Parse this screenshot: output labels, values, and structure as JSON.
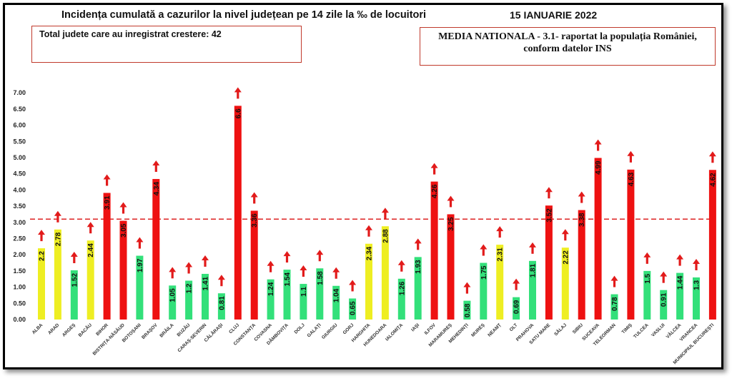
{
  "header": {
    "title": "Incidența cumulată a cazurilor la nivel județean pe 14 zile la ‰ de locuitori",
    "date": "15 IANUARIE 2022"
  },
  "info_left": {
    "text": "Total judete care au inregistrat crestere: 42"
  },
  "info_right": {
    "line1": "MEDIA NATIONALA - 3.1-  raportat la populația României,",
    "line2": "conform datelor INS"
  },
  "colors": {
    "red": "#ee1111",
    "yellow": "#eeee22",
    "green": "#33e07a",
    "arrow": "#e21b1b",
    "reference": "#dd2222"
  },
  "chart_data": {
    "type": "bar",
    "categories": [
      "ALBA",
      "ARAD",
      "ARGEȘ",
      "BACĂU",
      "BIHOR",
      "BISTRIȚA-NĂSĂUD",
      "BOTOȘANI",
      "BRAȘOV",
      "BRĂILA",
      "BUZĂU",
      "CARAȘ-SEVERIN",
      "CĂLĂRAȘI",
      "CLUJ",
      "CONSTANȚA",
      "COVASNA",
      "DÂMBOVIȚA",
      "DOLJ",
      "GALAȚI",
      "GIURGIU",
      "GORJ",
      "HARGHITA",
      "HUNEDOARA",
      "IALOMIȚA",
      "IAȘI",
      "ILFOV",
      "MARAMUREȘ",
      "MEHEDINȚI",
      "MUREȘ",
      "NEAMȚ",
      "OLT",
      "PRAHOVA",
      "SATU MARE",
      "SĂLAJ",
      "SIBIU",
      "SUCEAVA",
      "TELEORMAN",
      "TIMIȘ",
      "TULCEA",
      "VASLUI",
      "VÂLCEA",
      "VRANCEA",
      "MUNICIPIUL BUCUREȘTI"
    ],
    "values": [
      2.2,
      2.78,
      1.52,
      2.44,
      3.91,
      3.05,
      1.97,
      4.34,
      1.05,
      1.2,
      1.41,
      0.81,
      6.6,
      3.36,
      1.24,
      1.54,
      1.1,
      1.58,
      1.04,
      0.65,
      2.34,
      2.88,
      1.26,
      1.93,
      4.26,
      3.25,
      0.58,
      1.75,
      2.31,
      0.69,
      1.81,
      3.52,
      2.22,
      3.38,
      4.99,
      0.78,
      4.63,
      1.5,
      0.91,
      1.44,
      1.3,
      4.62
    ],
    "labels": [
      "2.2",
      "2.78",
      "1.52",
      "2.44",
      "3.91",
      "3.05",
      "1.97",
      "4.34",
      "1.05",
      "1.2",
      "1.41",
      "0.81",
      "6.6",
      "3.36",
      "1.24",
      "1.54",
      "1.1",
      "1.58",
      "1.04",
      "0.65",
      "2.34",
      "2.88",
      "1.26",
      "1.93",
      "4.26",
      "3.25",
      "0.58",
      "1.75",
      "2.31",
      "0.69",
      "1.81",
      "3.52",
      "2.22",
      "3.38",
      "4.99",
      "0.78",
      "4.63",
      "1.5",
      "0.91",
      "1.44",
      "1.3",
      "4.62"
    ],
    "bar_colors": [
      "yellow",
      "yellow",
      "green",
      "yellow",
      "red",
      "red",
      "green",
      "red",
      "green",
      "green",
      "green",
      "green",
      "red",
      "red",
      "green",
      "green",
      "green",
      "green",
      "green",
      "green",
      "yellow",
      "yellow",
      "green",
      "green",
      "red",
      "red",
      "green",
      "green",
      "yellow",
      "green",
      "green",
      "red",
      "yellow",
      "red",
      "red",
      "green",
      "red",
      "green",
      "green",
      "green",
      "green",
      "red"
    ],
    "trend": "up",
    "reference_line": 3.1,
    "ylim": [
      0,
      7
    ],
    "yticks": [
      "0.00",
      "0.50",
      "1.00",
      "1.50",
      "2.00",
      "2.50",
      "3.00",
      "3.50",
      "4.00",
      "4.50",
      "5.00",
      "5.50",
      "6.00",
      "6.50",
      "7.00"
    ],
    "grid": false,
    "legend": false
  }
}
